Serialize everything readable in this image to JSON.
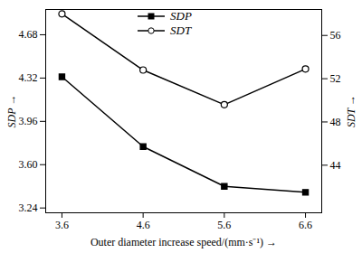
{
  "chart_data": {
    "type": "line",
    "x_label": "Outer diameter increase speed/(mm·s⁻¹)",
    "y_label": "SDP",
    "y2_label": "SDT",
    "x": [
      3.6,
      4.6,
      5.6,
      6.6
    ],
    "xlim": [
      3.4,
      6.8
    ],
    "xticks": [
      3.6,
      4.6,
      5.6,
      6.6
    ],
    "ylim": [
      3.2,
      4.89
    ],
    "yticks": [
      3.24,
      {
        "value": 3.6,
        "label": "3.60"
      },
      3.96,
      4.32,
      4.68
    ],
    "y2lim": [
      39.6,
      58.4
    ],
    "y2ticks": [
      44,
      48,
      52,
      56
    ],
    "legend": "top",
    "grid": false,
    "series": [
      {
        "name": "SDP",
        "color": "#000000",
        "marker": "square",
        "values": [
          4.33,
          3.75,
          3.42,
          3.37
        ]
      },
      {
        "name": "SDT",
        "color": "#000000",
        "marker": "circle",
        "axis": "y2",
        "values": [
          58,
          52.8,
          49.6,
          52.9
        ]
      }
    ]
  }
}
